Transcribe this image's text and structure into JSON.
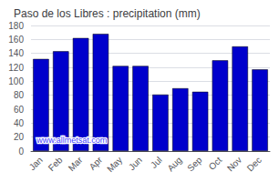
{
  "chart_data": {
    "type": "bar",
    "title": "Paso de los Libres : precipitation (mm)",
    "categories": [
      "Jan",
      "Feb",
      "Mar",
      "Apr",
      "May",
      "Jun",
      "Jul",
      "Aug",
      "Sep",
      "Oct",
      "Nov",
      "Dec"
    ],
    "values": [
      132,
      143,
      162,
      168,
      122,
      122,
      81,
      90,
      85,
      130,
      150,
      117
    ],
    "color": "#0000cc",
    "ylim": [
      0,
      180
    ],
    "yticks": [
      0,
      20,
      40,
      60,
      80,
      100,
      120,
      140,
      160,
      180
    ],
    "grid": true,
    "annotation": "www.allmetsat.com"
  }
}
